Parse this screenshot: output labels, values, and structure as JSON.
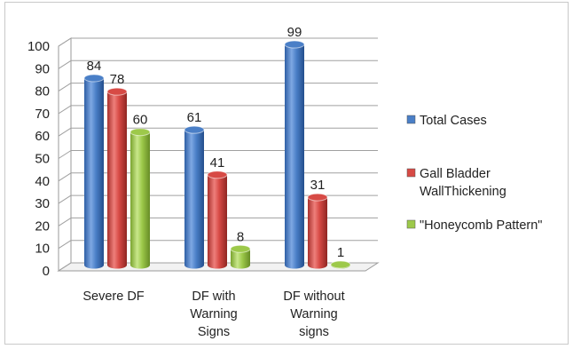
{
  "chart_data": {
    "type": "bar",
    "categories": [
      [
        "Severe DF"
      ],
      [
        "DF with",
        "Warning",
        "Signs"
      ],
      [
        "DF without",
        "Warning",
        "signs"
      ]
    ],
    "series": [
      {
        "name": [
          "Total Cases"
        ],
        "values": [
          84,
          61,
          99
        ],
        "color": "#4a7fc7"
      },
      {
        "name": [
          "Gall Bladder",
          "WallThickening"
        ],
        "values": [
          78,
          41,
          31
        ],
        "color": "#d74a45"
      },
      {
        "name": [
          "\"Honeycomb Pattern\""
        ],
        "values": [
          60,
          8,
          1
        ],
        "color": "#9dc94a"
      }
    ],
    "ylim": [
      0,
      100
    ],
    "yticks": [
      0,
      10,
      20,
      30,
      40,
      50,
      60,
      70,
      80,
      90,
      100
    ],
    "grid": true,
    "legend_position": "right",
    "style": "3d-cylinder"
  }
}
